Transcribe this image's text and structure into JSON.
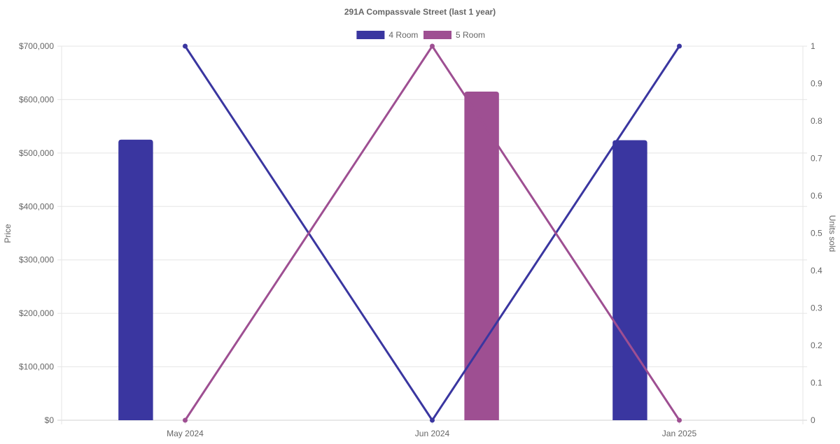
{
  "chart_data": {
    "type": "bar",
    "title": "291A Compassvale Street (last 1 year)",
    "categories": [
      "May 2024",
      "Jun 2024",
      "Jan 2025"
    ],
    "y_left": {
      "label": "Price",
      "range": [
        0,
        700000
      ],
      "ticks": [
        "$0",
        "$100,000",
        "$200,000",
        "$300,000",
        "$400,000",
        "$500,000",
        "$600,000",
        "$700,000"
      ]
    },
    "y_right": {
      "label": "Units sold",
      "range": [
        0,
        1
      ],
      "ticks": [
        "0",
        "0.1",
        "0.2",
        "0.3",
        "0.4",
        "0.5",
        "0.6",
        "0.7",
        "0.8",
        "0.9",
        "1"
      ]
    },
    "grid": true,
    "legend_position": "top-center",
    "series": [
      {
        "name": "4 Room",
        "color": "#3a36a0",
        "price": [
          525000,
          null,
          524000
        ],
        "units_sold": [
          1,
          0,
          1
        ]
      },
      {
        "name": "5 Room",
        "color": "#9e4f92",
        "price": [
          null,
          615000,
          null
        ],
        "units_sold": [
          0,
          1,
          0
        ]
      }
    ]
  }
}
